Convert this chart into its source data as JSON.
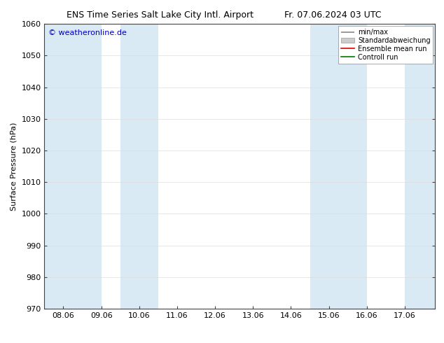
{
  "title_left": "ENS Time Series Salt Lake City Intl. Airport",
  "title_right": "Fr. 07.06.2024 03 UTC",
  "ylabel": "Surface Pressure (hPa)",
  "ylim": [
    970,
    1060
  ],
  "yticks": [
    970,
    980,
    990,
    1000,
    1010,
    1020,
    1030,
    1040,
    1050,
    1060
  ],
  "x_labels": [
    "08.06",
    "09.06",
    "10.06",
    "11.06",
    "12.06",
    "13.06",
    "14.06",
    "15.06",
    "16.06",
    "17.06"
  ],
  "x_tick_pos": [
    1,
    2,
    3,
    4,
    5,
    6,
    7,
    8,
    9,
    10
  ],
  "xlim": [
    0.5,
    10.8
  ],
  "shaded_bands": [
    {
      "x_start": 0.5,
      "x_end": 2.0,
      "color": "#daeaf5"
    },
    {
      "x_start": 2.5,
      "x_end": 3.5,
      "color": "#daeaf5"
    },
    {
      "x_start": 7.5,
      "x_end": 9.0,
      "color": "#daeaf5"
    },
    {
      "x_start": 10.0,
      "x_end": 10.8,
      "color": "#daeaf5"
    }
  ],
  "copyright_text": "© weatheronline.de",
  "copyright_color": "#0000bb",
  "legend_labels": [
    "min/max",
    "Standardabweichung",
    "Ensemble mean run",
    "Controll run"
  ],
  "legend_colors_line": [
    "#888888",
    "#bbbbbb",
    "#dd0000",
    "#007700"
  ],
  "background_color": "#ffffff",
  "plot_bg_color": "#ffffff",
  "grid_color": "#dddddd",
  "title_fontsize": 9,
  "axis_fontsize": 8,
  "tick_fontsize": 8
}
